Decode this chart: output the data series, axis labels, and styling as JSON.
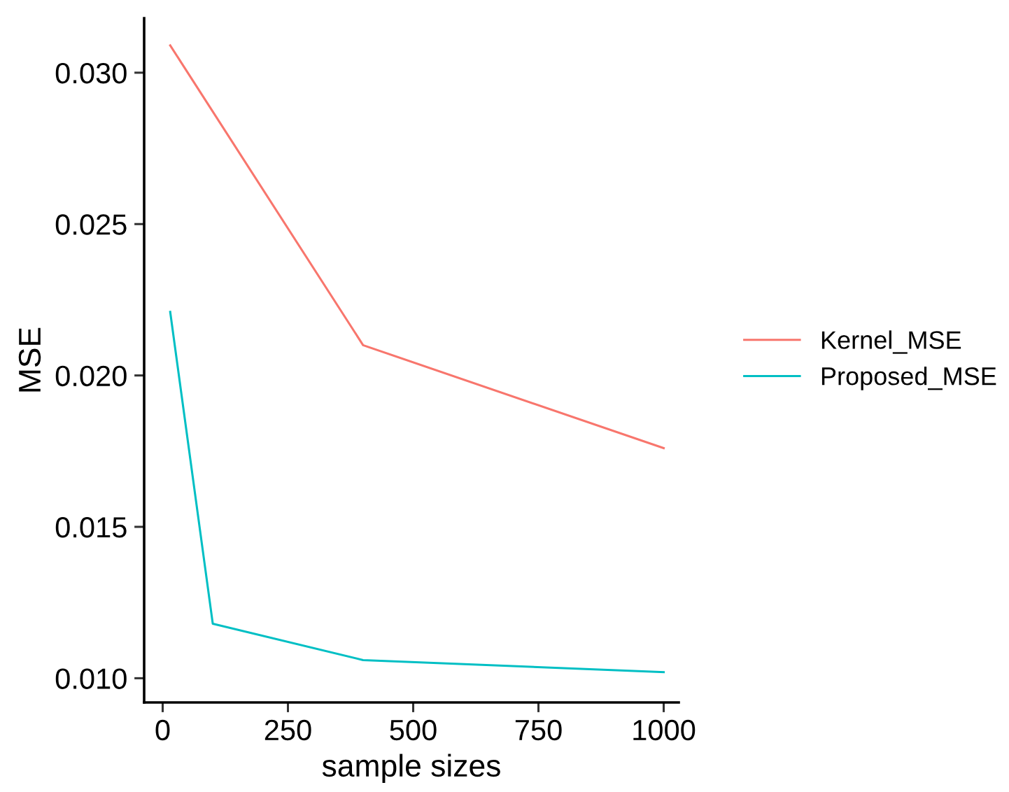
{
  "chart_data": {
    "type": "line",
    "xlabel": "sample sizes",
    "ylabel": "MSE",
    "x": [
      15,
      100,
      400,
      1000
    ],
    "series": [
      {
        "name": "Kernel_MSE",
        "color": "#f8766d",
        "x": [
          15,
          400,
          1000
        ],
        "values": [
          0.0309,
          0.021,
          0.0176
        ]
      },
      {
        "name": "Proposed_MSE",
        "color": "#00bfc4",
        "values": [
          0.0221,
          0.0118,
          0.0106,
          0.0102
        ]
      }
    ],
    "xlim": [
      -37,
      1030
    ],
    "xticks": [
      0,
      250,
      500,
      750,
      1000
    ],
    "ylim": [
      0.0092,
      0.0318
    ],
    "yticks": [
      {
        "value": 0.01,
        "label": "0.010"
      },
      {
        "value": 0.015,
        "label": "0.015"
      },
      {
        "value": 0.02,
        "label": "0.020"
      },
      {
        "value": 0.025,
        "label": "0.025"
      },
      {
        "value": 0.03,
        "label": "0.030"
      }
    ],
    "grid": false,
    "legend": "right",
    "marker": "none",
    "line_style": "solid"
  }
}
